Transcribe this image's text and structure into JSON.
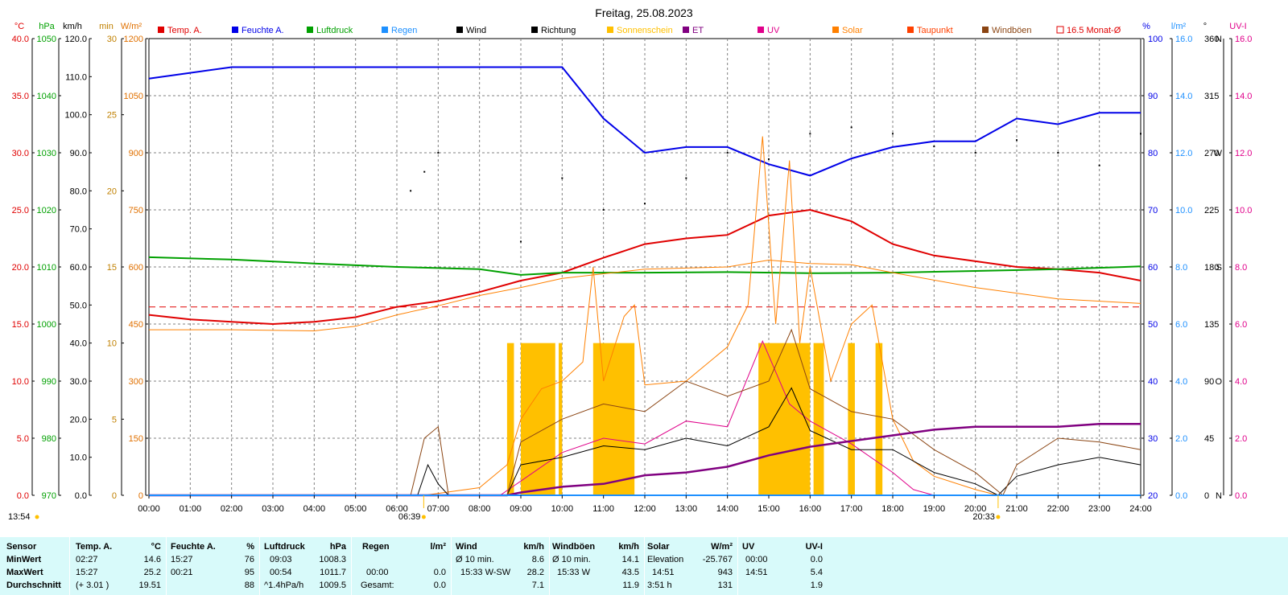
{
  "title": "Freitag, 25.08.2023",
  "colors": {
    "temp": "#e00000",
    "hum": "#0000e8",
    "press": "#00a000",
    "rain": "#1e90ff",
    "wind": "#000000",
    "dir": "#000000",
    "sun": "#ffc000",
    "et": "#800080",
    "uv": "#e0008a",
    "solar": "#ff8000",
    "dew": "#ff4000",
    "gust": "#8b4513",
    "avg": "#e00000"
  },
  "legend": [
    {
      "key": "temp",
      "label": "Temp. A."
    },
    {
      "key": "hum",
      "label": "Feuchte A."
    },
    {
      "key": "press",
      "label": "Luftdruck"
    },
    {
      "key": "rain",
      "label": "Regen"
    },
    {
      "key": "wind",
      "label": "Wind"
    },
    {
      "key": "dir",
      "label": "Richtung"
    },
    {
      "key": "sun",
      "label": "Sonnenschein"
    },
    {
      "key": "et",
      "label": "ET"
    },
    {
      "key": "uv",
      "label": "UV"
    },
    {
      "key": "solar",
      "label": "Solar"
    },
    {
      "key": "dew",
      "label": "Taupunkt"
    },
    {
      "key": "gust",
      "label": "Windböen"
    },
    {
      "key": "avg",
      "label": "16.5 Monat-Ø"
    }
  ],
  "axis_units": {
    "temp": "°C",
    "press": "hPa",
    "wind": "km/h",
    "sun": "min",
    "solar": "W/m²",
    "hum": "%",
    "rain": "l/m²",
    "dir": "°",
    "uv": "UV-I"
  },
  "axis_ticks": {
    "temp": [
      "0.0",
      "5.0",
      "10.0",
      "15.0",
      "20.0",
      "25.0",
      "30.0",
      "35.0",
      "40.0"
    ],
    "press": [
      "970",
      "980",
      "990",
      "1000",
      "1010",
      "1020",
      "1030",
      "1040",
      "1050"
    ],
    "wind": [
      "0.0",
      "10.0",
      "20.0",
      "30.0",
      "40.0",
      "50.0",
      "60.0",
      "70.0",
      "80.0",
      "90.0",
      "100.0",
      "110.0",
      "120.0"
    ],
    "sun": [
      "0",
      "5",
      "10",
      "15",
      "20",
      "25",
      "30"
    ],
    "solar": [
      "0",
      "150",
      "300",
      "450",
      "600",
      "750",
      "900",
      "1050",
      "1200"
    ],
    "hum": [
      "20",
      "30",
      "40",
      "50",
      "60",
      "70",
      "80",
      "90",
      "100"
    ],
    "rain": [
      "0.0",
      "2.0",
      "4.0",
      "6.0",
      "8.0",
      "10.0",
      "12.0",
      "14.0",
      "16.0"
    ],
    "dir": [
      "0",
      "45",
      "90",
      "135",
      "180",
      "225",
      "270",
      "315",
      "360"
    ],
    "dir_letters": [
      "N",
      "",
      "O",
      "",
      "S",
      "",
      "W",
      "",
      "N"
    ],
    "uv": [
      "0.0",
      "2.0",
      "4.0",
      "6.0",
      "8.0",
      "10.0",
      "12.0",
      "14.0",
      "16.0"
    ]
  },
  "x_ticks": [
    "00:00",
    "01:00",
    "02:00",
    "03:00",
    "04:00",
    "05:00",
    "06:00",
    "07:00",
    "08:00",
    "09:00",
    "10:00",
    "11:00",
    "12:00",
    "13:00",
    "14:00",
    "15:00",
    "16:00",
    "17:00",
    "18:00",
    "19:00",
    "20:00",
    "21:00",
    "22:00",
    "23:00",
    "24:00"
  ],
  "markers": {
    "now": "13:54",
    "sunrise": "06:39",
    "sunset": "20:33"
  },
  "chart_data": {
    "type": "line",
    "x_range": [
      "00:00",
      "24:00"
    ],
    "grid": true,
    "monthly_avg_temp": 16.5,
    "series": [
      {
        "name": "Temp. A.",
        "unit": "°C",
        "axis": "temp",
        "points": [
          [
            "00:00",
            15.8
          ],
          [
            "01:00",
            15.4
          ],
          [
            "02:00",
            15.2
          ],
          [
            "03:00",
            15.0
          ],
          [
            "04:00",
            15.2
          ],
          [
            "05:00",
            15.6
          ],
          [
            "06:00",
            16.5
          ],
          [
            "07:00",
            17.0
          ],
          [
            "08:00",
            17.8
          ],
          [
            "09:00",
            18.8
          ],
          [
            "10:00",
            19.5
          ],
          [
            "11:00",
            20.8
          ],
          [
            "12:00",
            22.0
          ],
          [
            "13:00",
            22.5
          ],
          [
            "14:00",
            22.8
          ],
          [
            "15:00",
            24.5
          ],
          [
            "16:00",
            25.0
          ],
          [
            "17:00",
            24.0
          ],
          [
            "18:00",
            22.0
          ],
          [
            "19:00",
            21.0
          ],
          [
            "20:00",
            20.5
          ],
          [
            "21:00",
            20.0
          ],
          [
            "22:00",
            19.8
          ],
          [
            "23:00",
            19.5
          ],
          [
            "24:00",
            18.8
          ]
        ]
      },
      {
        "name": "Feuchte A.",
        "unit": "%",
        "axis": "hum",
        "points": [
          [
            "00:00",
            93
          ],
          [
            "01:00",
            94
          ],
          [
            "02:00",
            95
          ],
          [
            "03:00",
            95
          ],
          [
            "04:00",
            95
          ],
          [
            "05:00",
            95
          ],
          [
            "06:00",
            95
          ],
          [
            "07:00",
            95
          ],
          [
            "08:00",
            95
          ],
          [
            "09:00",
            95
          ],
          [
            "10:00",
            95
          ],
          [
            "11:00",
            86
          ],
          [
            "12:00",
            80
          ],
          [
            "13:00",
            81
          ],
          [
            "14:00",
            81
          ],
          [
            "15:00",
            78
          ],
          [
            "16:00",
            76
          ],
          [
            "17:00",
            79
          ],
          [
            "18:00",
            81
          ],
          [
            "19:00",
            82
          ],
          [
            "20:00",
            82
          ],
          [
            "21:00",
            86
          ],
          [
            "22:00",
            85
          ],
          [
            "23:00",
            87
          ],
          [
            "24:00",
            87
          ]
        ]
      },
      {
        "name": "Luftdruck",
        "unit": "hPa",
        "axis": "press",
        "points": [
          [
            "00:00",
            1011.7
          ],
          [
            "02:00",
            1011.3
          ],
          [
            "04:00",
            1010.6
          ],
          [
            "06:00",
            1010.0
          ],
          [
            "08:00",
            1009.6
          ],
          [
            "09:00",
            1008.6
          ],
          [
            "10:00",
            1009.0
          ],
          [
            "12:00",
            1009.0
          ],
          [
            "14:00",
            1009.1
          ],
          [
            "16:00",
            1008.9
          ],
          [
            "18:00",
            1009.0
          ],
          [
            "20:00",
            1009.3
          ],
          [
            "22:00",
            1009.6
          ],
          [
            "24:00",
            1010.1
          ]
        ]
      },
      {
        "name": "Taupunkt",
        "unit": "°C",
        "axis": "temp",
        "points": [
          [
            "00:00",
            14.5
          ],
          [
            "02:00",
            14.5
          ],
          [
            "04:00",
            14.4
          ],
          [
            "05:00",
            14.8
          ],
          [
            "06:00",
            15.8
          ],
          [
            "07:00",
            16.6
          ],
          [
            "08:00",
            17.5
          ],
          [
            "09:00",
            18.2
          ],
          [
            "10:00",
            19.0
          ],
          [
            "12:00",
            19.8
          ],
          [
            "14:00",
            20.0
          ],
          [
            "15:00",
            20.6
          ],
          [
            "16:00",
            20.3
          ],
          [
            "17:00",
            20.2
          ],
          [
            "18:00",
            19.5
          ],
          [
            "20:00",
            18.2
          ],
          [
            "22:00",
            17.2
          ],
          [
            "24:00",
            16.8
          ]
        ]
      },
      {
        "name": "Solar",
        "unit": "W/m²",
        "axis": "solar",
        "points": [
          [
            "00:00",
            0
          ],
          [
            "06:40",
            0
          ],
          [
            "07:00",
            5
          ],
          [
            "08:00",
            20
          ],
          [
            "08:40",
            80
          ],
          [
            "09:00",
            200
          ],
          [
            "09:30",
            280
          ],
          [
            "10:00",
            300
          ],
          [
            "10:30",
            350
          ],
          [
            "10:45",
            600
          ],
          [
            "11:00",
            300
          ],
          [
            "11:30",
            470
          ],
          [
            "11:45",
            500
          ],
          [
            "12:00",
            290
          ],
          [
            "13:00",
            300
          ],
          [
            "14:00",
            390
          ],
          [
            "14:30",
            500
          ],
          [
            "14:51",
            943
          ],
          [
            "15:10",
            450
          ],
          [
            "15:30",
            880
          ],
          [
            "15:45",
            400
          ],
          [
            "16:00",
            600
          ],
          [
            "16:30",
            300
          ],
          [
            "17:00",
            450
          ],
          [
            "17:30",
            500
          ],
          [
            "18:00",
            200
          ],
          [
            "18:30",
            90
          ],
          [
            "19:00",
            50
          ],
          [
            "20:00",
            15
          ],
          [
            "20:33",
            0
          ],
          [
            "24:00",
            0
          ]
        ]
      },
      {
        "name": "UV",
        "unit": "UV-I",
        "axis": "uv",
        "points": [
          [
            "00:00",
            0
          ],
          [
            "08:30",
            0
          ],
          [
            "09:00",
            0.5
          ],
          [
            "10:00",
            1.5
          ],
          [
            "11:00",
            2.0
          ],
          [
            "12:00",
            1.8
          ],
          [
            "13:00",
            2.6
          ],
          [
            "14:00",
            2.4
          ],
          [
            "14:51",
            5.4
          ],
          [
            "15:30",
            3.2
          ],
          [
            "16:00",
            2.6
          ],
          [
            "17:00",
            1.8
          ],
          [
            "18:00",
            0.8
          ],
          [
            "18:30",
            0.2
          ],
          [
            "19:00",
            0
          ],
          [
            "24:00",
            0
          ]
        ]
      },
      {
        "name": "Wind",
        "unit": "km/h",
        "axis": "wind",
        "points": [
          [
            "00:00",
            0
          ],
          [
            "06:30",
            0
          ],
          [
            "06:45",
            8
          ],
          [
            "07:00",
            3
          ],
          [
            "07:15",
            0
          ],
          [
            "08:40",
            0
          ],
          [
            "09:00",
            8
          ],
          [
            "10:00",
            10
          ],
          [
            "11:00",
            13
          ],
          [
            "12:00",
            12
          ],
          [
            "13:00",
            15
          ],
          [
            "14:00",
            13
          ],
          [
            "15:00",
            18
          ],
          [
            "15:33",
            28.2
          ],
          [
            "16:00",
            17
          ],
          [
            "17:00",
            12
          ],
          [
            "18:00",
            12
          ],
          [
            "19:00",
            6
          ],
          [
            "20:00",
            3
          ],
          [
            "20:33",
            0
          ],
          [
            "21:00",
            5
          ],
          [
            "22:00",
            8
          ],
          [
            "23:00",
            10
          ],
          [
            "24:00",
            8
          ]
        ]
      },
      {
        "name": "Windböen",
        "unit": "km/h",
        "axis": "wind",
        "points": [
          [
            "00:00",
            0
          ],
          [
            "06:20",
            0
          ],
          [
            "06:40",
            15
          ],
          [
            "07:00",
            18
          ],
          [
            "07:15",
            0
          ],
          [
            "08:40",
            0
          ],
          [
            "09:00",
            14
          ],
          [
            "10:00",
            20
          ],
          [
            "11:00",
            24
          ],
          [
            "12:00",
            22
          ],
          [
            "13:00",
            30
          ],
          [
            "14:00",
            26
          ],
          [
            "15:00",
            30
          ],
          [
            "15:33",
            43.5
          ],
          [
            "16:00",
            28
          ],
          [
            "17:00",
            22
          ],
          [
            "18:00",
            20
          ],
          [
            "19:00",
            12
          ],
          [
            "20:00",
            6
          ],
          [
            "20:40",
            0
          ],
          [
            "21:00",
            8
          ],
          [
            "22:00",
            15
          ],
          [
            "23:00",
            14
          ],
          [
            "24:00",
            12
          ]
        ]
      },
      {
        "name": "ET",
        "unit": "l/m²",
        "axis": "rain",
        "points": [
          [
            "00:00",
            0
          ],
          [
            "08:40",
            0
          ],
          [
            "09:00",
            0.1
          ],
          [
            "10:00",
            0.3
          ],
          [
            "11:00",
            0.4
          ],
          [
            "12:00",
            0.7
          ],
          [
            "13:00",
            0.8
          ],
          [
            "14:00",
            1.0
          ],
          [
            "15:00",
            1.4
          ],
          [
            "16:00",
            1.7
          ],
          [
            "17:00",
            1.9
          ],
          [
            "18:00",
            2.1
          ],
          [
            "19:00",
            2.3
          ],
          [
            "20:00",
            2.4
          ],
          [
            "21:00",
            2.4
          ],
          [
            "22:00",
            2.4
          ],
          [
            "23:00",
            2.5
          ],
          [
            "24:00",
            2.5
          ]
        ]
      },
      {
        "name": "Regen",
        "unit": "l/m²",
        "axis": "rain",
        "points": [
          [
            "00:00",
            0
          ],
          [
            "24:00",
            0
          ]
        ]
      }
    ],
    "sunshine_minutes_max": 10,
    "sunshine_periods": [
      [
        "08:40",
        "08:50"
      ],
      [
        "09:00",
        "09:50"
      ],
      [
        "09:55",
        "10:00"
      ],
      [
        "10:45",
        "11:45"
      ],
      [
        "14:45",
        "16:00"
      ],
      [
        "16:05",
        "16:20"
      ],
      [
        "16:55",
        "17:05"
      ],
      [
        "17:35",
        "17:45"
      ]
    ],
    "wind_direction_deg": [
      [
        "06:20",
        240
      ],
      [
        "06:40",
        255
      ],
      [
        "07:00",
        270
      ],
      [
        "09:00",
        200
      ],
      [
        "10:00",
        250
      ],
      [
        "11:00",
        225
      ],
      [
        "12:00",
        230
      ],
      [
        "13:00",
        250
      ],
      [
        "14:00",
        270
      ],
      [
        "15:00",
        265
      ],
      [
        "16:00",
        285
      ],
      [
        "17:00",
        290
      ],
      [
        "18:00",
        285
      ],
      [
        "19:00",
        275
      ],
      [
        "20:00",
        270
      ],
      [
        "21:00",
        280
      ],
      [
        "22:00",
        270
      ],
      [
        "23:00",
        260
      ],
      [
        "24:00",
        285
      ]
    ]
  },
  "stats": {
    "headers": {
      "sensor": "Sensor",
      "temp": "Temp. A.",
      "temp_unit": "°C",
      "hum": "Feuchte A.",
      "hum_unit": "%",
      "press": "Luftdruck",
      "press_unit": "hPa",
      "rain": "Regen",
      "rain_unit": "l/m²",
      "wind": "Wind",
      "wind_unit": "km/h",
      "gust": "Windböen",
      "gust_unit": "km/h",
      "solar": "Solar",
      "solar_unit": "W/m²",
      "uv": "UV",
      "uv_unit": "UV-I"
    },
    "row_labels": [
      "MinWert",
      "MaxWert",
      "Durchschnitt"
    ],
    "temp": [
      [
        "02:27",
        "14.6"
      ],
      [
        "15:27",
        "25.2"
      ],
      [
        "(+ 3.01 )",
        "19.51"
      ]
    ],
    "hum": [
      [
        "15:27",
        "76"
      ],
      [
        "00:21",
        "95"
      ],
      [
        "",
        "88"
      ]
    ],
    "press": [
      [
        "09:03",
        "1008.3"
      ],
      [
        "00:54",
        "1011.7"
      ],
      [
        "^1.4hPa/h",
        "1009.5"
      ]
    ],
    "rain": [
      [
        "",
        ""
      ],
      [
        "00:00",
        "0.0"
      ],
      [
        "Gesamt:",
        "0.0"
      ]
    ],
    "wind": [
      [
        "Ø 10 min.",
        "8.6"
      ],
      [
        "15:33  W-SW",
        "28.2"
      ],
      [
        "",
        "7.1"
      ]
    ],
    "gust": [
      [
        "Ø 10 min.",
        "14.1"
      ],
      [
        "15:33  W",
        "43.5"
      ],
      [
        "",
        "11.9"
      ]
    ],
    "solar": [
      [
        "Elevation",
        "-25.767"
      ],
      [
        "14:51",
        "943"
      ],
      [
        "3:51 h",
        "131"
      ]
    ],
    "uv": [
      [
        "00:00",
        "0.0"
      ],
      [
        "14:51",
        "5.4"
      ],
      [
        "",
        "1.9"
      ]
    ]
  }
}
